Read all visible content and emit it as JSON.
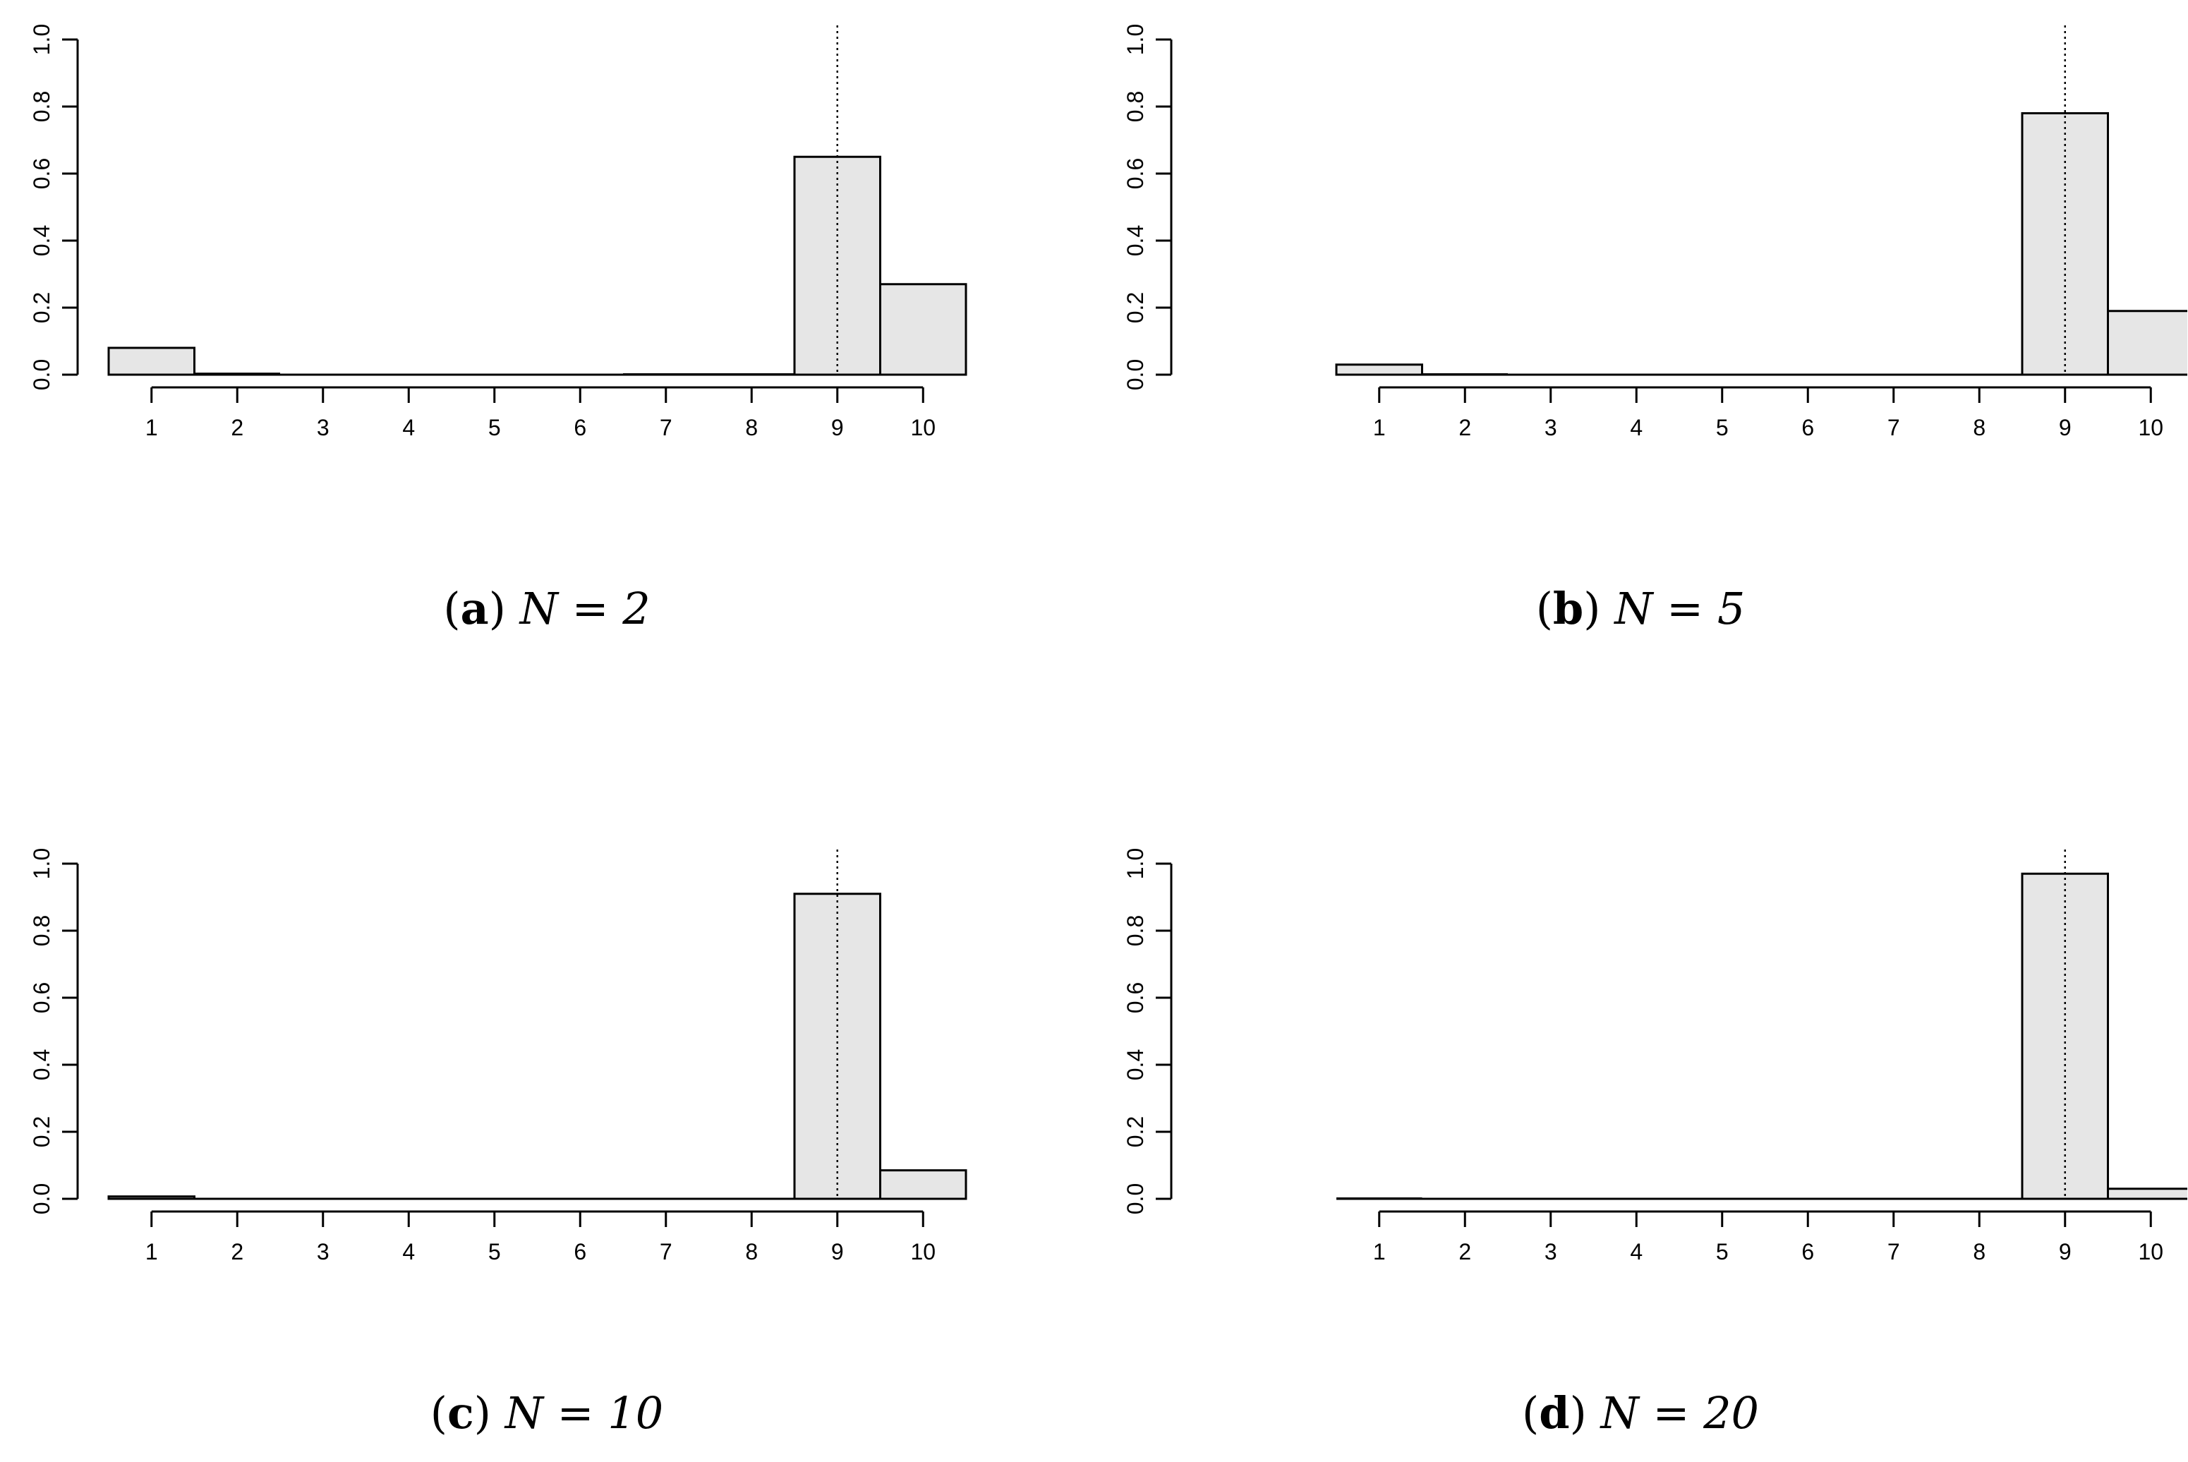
{
  "chart_data": [
    {
      "type": "bar",
      "panel_label": "a",
      "caption_expr": "N = 2",
      "categories": [
        "1",
        "2",
        "3",
        "4",
        "5",
        "6",
        "7",
        "8",
        "9",
        "10"
      ],
      "values": [
        0.08,
        0.003,
        0.0,
        0.0,
        0.0,
        0.0,
        0.001,
        0.001,
        0.65,
        0.27
      ],
      "ylim": [
        0,
        1
      ],
      "yticks": [
        "0.0",
        "0.2",
        "0.4",
        "0.6",
        "0.8",
        "1.0"
      ],
      "reference_line_x": "9",
      "bar_color": "#e6e6e6"
    },
    {
      "type": "bar",
      "panel_label": "b",
      "caption_expr": "N = 5",
      "categories": [
        "1",
        "2",
        "3",
        "4",
        "5",
        "6",
        "7",
        "8",
        "9",
        "10"
      ],
      "values": [
        0.03,
        0.001,
        0.0,
        0.0,
        0.0,
        0.0,
        0.0,
        0.0,
        0.78,
        0.19
      ],
      "ylim": [
        0,
        1
      ],
      "yticks": [
        "0.0",
        "0.2",
        "0.4",
        "0.6",
        "0.8",
        "1.0"
      ],
      "reference_line_x": "9",
      "bar_color": "#e6e6e6"
    },
    {
      "type": "bar",
      "panel_label": "c",
      "caption_expr": "N = 10",
      "categories": [
        "1",
        "2",
        "3",
        "4",
        "5",
        "6",
        "7",
        "8",
        "9",
        "10"
      ],
      "values": [
        0.007,
        0.0,
        0.0,
        0.0,
        0.0,
        0.0,
        0.0,
        0.0,
        0.91,
        0.085
      ],
      "ylim": [
        0,
        1
      ],
      "yticks": [
        "0.0",
        "0.2",
        "0.4",
        "0.6",
        "0.8",
        "1.0"
      ],
      "reference_line_x": "9",
      "bar_color": "#e6e6e6"
    },
    {
      "type": "bar",
      "panel_label": "d",
      "caption_expr": "N = 20",
      "categories": [
        "1",
        "2",
        "3",
        "4",
        "5",
        "6",
        "7",
        "8",
        "9",
        "10"
      ],
      "values": [
        0.001,
        0.0,
        0.0,
        0.0,
        0.0,
        0.0,
        0.0,
        0.0,
        0.97,
        0.03
      ],
      "ylim": [
        0,
        1
      ],
      "yticks": [
        "0.0",
        "0.2",
        "0.4",
        "0.6",
        "0.8",
        "1.0"
      ],
      "reference_line_x": "9",
      "bar_color": "#e6e6e6"
    }
  ]
}
